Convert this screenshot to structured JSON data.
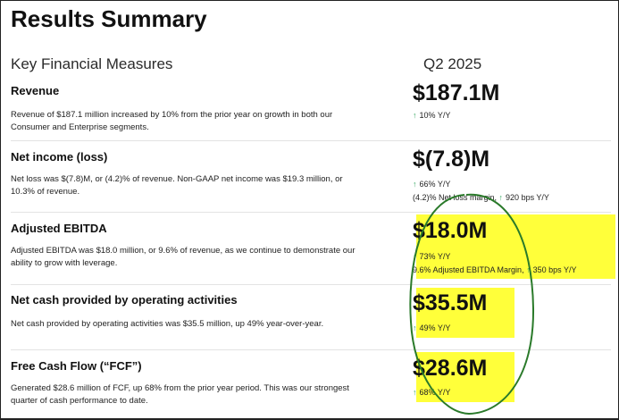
{
  "page": {
    "title": "Results Summary",
    "columns": {
      "label": "Key Financial Measures",
      "period": "Q2 2025"
    }
  },
  "colors": {
    "highlight": "#ffff3a",
    "ellipse": "#2a7a2a",
    "up_arrow": "#3aa864"
  },
  "icons": {
    "up": "arrow-up-icon"
  },
  "rows": [
    {
      "heading": "Revenue",
      "description": "Revenue of $187.1 million increased by 10% from the prior year on growth in both our Consumer and Enterprise segments.",
      "value": "$187.1M",
      "change": "10% Y/Y"
    },
    {
      "heading": "Net income (loss)",
      "description": "Net loss was $(7.8)M, or (4.2)% of revenue. Non-GAAP net income was $19.3 million, or 10.3% of revenue.",
      "value": "$(7.8)M",
      "change": "66% Y/Y",
      "extra_label": "(4.2)% Net loss margin,",
      "extra_change": "920 bps Y/Y"
    },
    {
      "heading": "Adjusted EBITDA",
      "description": "Adjusted EBITDA was $18.0 million, or 9.6% of revenue, as we continue to demonstrate our ability to grow with leverage.",
      "value": "$18.0M",
      "change": "73% Y/Y",
      "extra_label": "9.6% Adjusted EBITDA Margin,",
      "extra_change": "350 bps Y/Y"
    },
    {
      "heading": "Net cash provided by operating activities",
      "description": "Net cash provided by operating activities was $35.5 million, up 49% year-over-year.",
      "value": "$35.5M",
      "change": "49% Y/Y"
    },
    {
      "heading": "Free Cash Flow (“FCF”)",
      "description": "Generated $28.6 million of FCF, up 68% from the prior year period. This was our strongest quarter of cash performance to date.",
      "value": "$28.6M",
      "change": "68% Y/Y"
    }
  ]
}
